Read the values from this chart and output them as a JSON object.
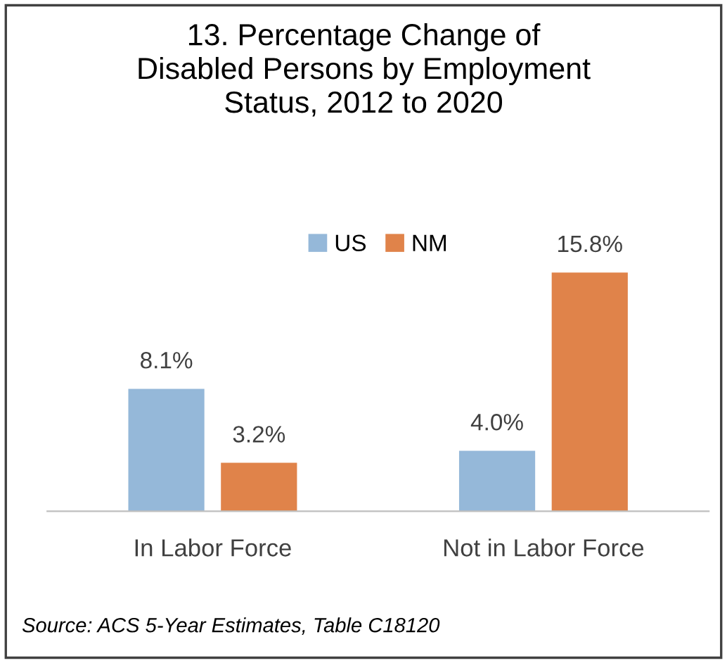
{
  "chart_data": {
    "type": "bar",
    "title": "13. Percentage Change of\nDisabled Persons by Employment\nStatus, 2012 to 2020",
    "categories": [
      "In Labor Force",
      "Not in Labor Force"
    ],
    "series": [
      {
        "name": "US",
        "color": "#95b8d9",
        "values": [
          8.1,
          4.0
        ],
        "value_labels": [
          "8.1%",
          "4.0%"
        ]
      },
      {
        "name": "NM",
        "color": "#e0834a",
        "values": [
          3.2,
          15.8
        ],
        "value_labels": [
          "3.2%",
          "15.8%"
        ]
      }
    ],
    "legend": "top",
    "annotations": [
      "Source: ACS 5-Year Estimates, Table C18120"
    ]
  }
}
